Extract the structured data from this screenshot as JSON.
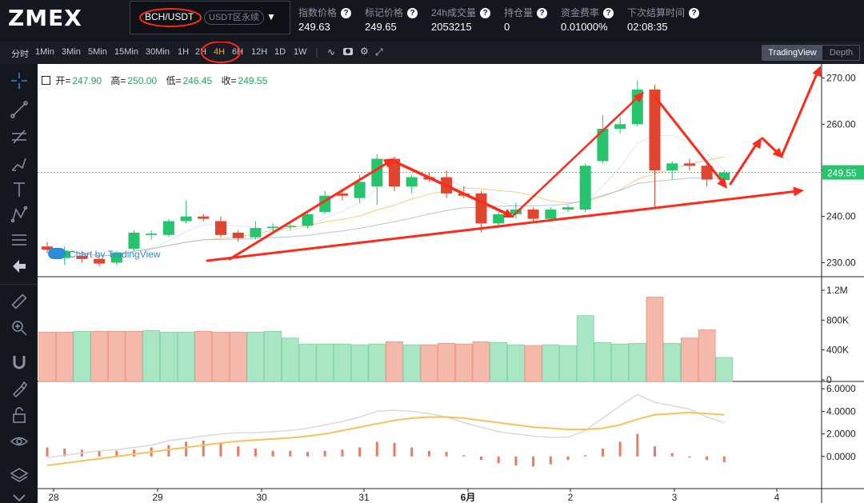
{
  "header": {
    "logo": "ZMEX",
    "symbol": "BCH/USDT",
    "symbol_type": "USDT区永续",
    "stats": [
      {
        "label": "指数价格",
        "value": "249.63"
      },
      {
        "label": "标记价格",
        "value": "249.65"
      },
      {
        "label": "24h成交量",
        "value": "2053215"
      },
      {
        "label": "持仓量",
        "value": "0"
      },
      {
        "label": "资金费率",
        "value": "0.01000%"
      },
      {
        "label": "下次结算时间",
        "value": "02:08:35"
      }
    ]
  },
  "toolbar": {
    "timeframes": [
      "分时",
      "1Min",
      "3Min",
      "5Min",
      "15Min",
      "30Min",
      "1H",
      "2H",
      "4H",
      "6H",
      "12H",
      "1D",
      "1W"
    ],
    "active_timeframe": "4H",
    "view_tradingview": "TradingView",
    "view_depth": "Depth"
  },
  "ohlc": {
    "open_label": "开=",
    "open": "247.90",
    "high_label": "高=",
    "high": "250.00",
    "low_label": "低=",
    "low": "246.45",
    "close_label": "收=",
    "close": "249.55"
  },
  "watermark": "Chart by TradingView",
  "colors": {
    "up": "#26c46c",
    "down": "#e0452f",
    "annotation": "#ff2a1a",
    "ma": "#f5c35a"
  },
  "chart_data": [
    {
      "type": "candlestick",
      "price_axis_ticks": [
        "270.00",
        "260.00",
        "250.00",
        "240.00",
        "230.00"
      ],
      "last_price_label": "249.55",
      "x_tick_labels": [
        "28",
        "29",
        "30",
        "31",
        "6月",
        "2",
        "3",
        "4"
      ],
      "ylim": [
        228,
        272
      ],
      "candles": [
        {
          "o": 233.5,
          "h": 234.5,
          "l": 232.0,
          "c": 232.8
        },
        {
          "o": 231.0,
          "h": 233.5,
          "l": 229.5,
          "c": 232.5
        },
        {
          "o": 231.5,
          "h": 232.5,
          "l": 230.0,
          "c": 230.8
        },
        {
          "o": 230.8,
          "h": 231.5,
          "l": 229.2,
          "c": 229.8
        },
        {
          "o": 230.0,
          "h": 232.5,
          "l": 229.5,
          "c": 232.2
        },
        {
          "o": 233.0,
          "h": 237.0,
          "l": 232.5,
          "c": 236.5
        },
        {
          "o": 236.0,
          "h": 237.0,
          "l": 235.0,
          "c": 236.3
        },
        {
          "o": 236.0,
          "h": 239.5,
          "l": 235.5,
          "c": 239.0
        },
        {
          "o": 239.0,
          "h": 243.5,
          "l": 238.5,
          "c": 240.0
        },
        {
          "o": 240.0,
          "h": 240.5,
          "l": 239.0,
          "c": 239.5
        },
        {
          "o": 239.0,
          "h": 240.0,
          "l": 235.5,
          "c": 236.0
        },
        {
          "o": 236.5,
          "h": 237.0,
          "l": 234.5,
          "c": 235.3
        },
        {
          "o": 235.5,
          "h": 239.0,
          "l": 235.0,
          "c": 237.5
        },
        {
          "o": 237.5,
          "h": 238.5,
          "l": 236.8,
          "c": 237.8
        },
        {
          "o": 237.8,
          "h": 239.0,
          "l": 237.0,
          "c": 238.0
        },
        {
          "o": 238.0,
          "h": 241.0,
          "l": 237.5,
          "c": 240.5
        },
        {
          "o": 241.0,
          "h": 245.5,
          "l": 240.5,
          "c": 244.5
        },
        {
          "o": 245.0,
          "h": 246.0,
          "l": 243.5,
          "c": 244.5
        },
        {
          "o": 244.0,
          "h": 249.0,
          "l": 243.0,
          "c": 247.5
        },
        {
          "o": 246.5,
          "h": 253.5,
          "l": 242.5,
          "c": 252.5
        },
        {
          "o": 252.5,
          "h": 253.0,
          "l": 245.5,
          "c": 246.5
        },
        {
          "o": 246.5,
          "h": 249.0,
          "l": 245.0,
          "c": 248.5
        },
        {
          "o": 248.5,
          "h": 249.5,
          "l": 247.5,
          "c": 248.0
        },
        {
          "o": 248.5,
          "h": 250.0,
          "l": 244.0,
          "c": 245.0
        },
        {
          "o": 245.0,
          "h": 246.5,
          "l": 244.0,
          "c": 244.5
        },
        {
          "o": 245.0,
          "h": 245.5,
          "l": 236.5,
          "c": 238.5
        },
        {
          "o": 238.5,
          "h": 241.0,
          "l": 237.5,
          "c": 240.5
        },
        {
          "o": 240.5,
          "h": 243.0,
          "l": 239.5,
          "c": 241.5
        },
        {
          "o": 241.5,
          "h": 242.0,
          "l": 239.0,
          "c": 239.5
        },
        {
          "o": 239.5,
          "h": 242.0,
          "l": 239.0,
          "c": 241.5
        },
        {
          "o": 241.5,
          "h": 242.5,
          "l": 241.0,
          "c": 242.0
        },
        {
          "o": 241.5,
          "h": 251.5,
          "l": 241.0,
          "c": 251.0
        },
        {
          "o": 252.0,
          "h": 262.0,
          "l": 251.5,
          "c": 259.0
        },
        {
          "o": 259.0,
          "h": 261.5,
          "l": 258.0,
          "c": 260.0
        },
        {
          "o": 260.0,
          "h": 269.5,
          "l": 259.5,
          "c": 267.5
        },
        {
          "o": 267.5,
          "h": 268.5,
          "l": 242.0,
          "c": 250.0
        },
        {
          "o": 250.0,
          "h": 252.0,
          "l": 248.0,
          "c": 251.5
        },
        {
          "o": 251.5,
          "h": 252.5,
          "l": 250.0,
          "c": 251.0
        },
        {
          "o": 251.0,
          "h": 251.5,
          "l": 246.5,
          "c": 248.0
        },
        {
          "o": 247.9,
          "h": 250.0,
          "l": 246.45,
          "c": 249.55
        }
      ]
    },
    {
      "type": "bar",
      "name": "volume",
      "axis_ticks": [
        "1.2M",
        "800K",
        "400K",
        "0"
      ],
      "ylim": [
        0,
        1200000
      ],
      "values": [
        640000,
        640000,
        650000,
        650000,
        650000,
        650000,
        660000,
        640000,
        640000,
        650000,
        640000,
        640000,
        640000,
        650000,
        560000,
        480000,
        480000,
        480000,
        470000,
        480000,
        510000,
        470000,
        470000,
        490000,
        480000,
        510000,
        500000,
        470000,
        460000,
        470000,
        460000,
        860000,
        500000,
        480000,
        490000,
        1110000,
        490000,
        560000,
        670000,
        300000
      ],
      "up": [
        false,
        false,
        true,
        false,
        false,
        false,
        true,
        true,
        true,
        false,
        false,
        false,
        true,
        true,
        true,
        true,
        true,
        true,
        true,
        true,
        false,
        true,
        false,
        false,
        false,
        false,
        true,
        true,
        false,
        true,
        true,
        true,
        true,
        true,
        true,
        false,
        true,
        false,
        false,
        true
      ]
    },
    {
      "type": "histogram",
      "name": "MACD",
      "axis_ticks": [
        "6.0000",
        "4.0000",
        "2.0000",
        "0.0000"
      ],
      "ylim": [
        -2.5,
        6.3
      ],
      "histogram": [
        0.8,
        0.7,
        0.6,
        0.5,
        0.5,
        0.6,
        0.8,
        1.0,
        1.3,
        1.4,
        1.2,
        0.9,
        0.7,
        0.5,
        0.5,
        0.4,
        0.5,
        0.6,
        0.8,
        1.3,
        1.2,
        0.8,
        0.5,
        0.4,
        0.1,
        -0.3,
        -0.6,
        -0.8,
        -0.9,
        -0.7,
        -0.3,
        0.1,
        0.7,
        1.3,
        2.0,
        0.9,
        0.3,
        -0.1,
        -0.3,
        -0.5
      ],
      "signal": [
        -0.8,
        -0.6,
        -0.4,
        -0.2,
        0.0,
        0.2,
        0.4,
        0.6,
        0.8,
        1.0,
        1.2,
        1.35,
        1.45,
        1.55,
        1.65,
        1.8,
        2.0,
        2.3,
        2.6,
        2.9,
        3.2,
        3.4,
        3.5,
        3.5,
        3.4,
        3.2,
        3.0,
        2.8,
        2.6,
        2.5,
        2.4,
        2.4,
        2.5,
        2.8,
        3.3,
        3.7,
        3.8,
        3.9,
        3.8,
        3.7
      ],
      "macd": [
        -0.1,
        0.1,
        0.3,
        0.5,
        0.6,
        0.8,
        1.0,
        1.4,
        1.6,
        1.8,
        2.0,
        2.1,
        2.1,
        2.2,
        2.3,
        2.5,
        2.8,
        3.1,
        3.5,
        4.0,
        4.1,
        4.0,
        3.8,
        3.5,
        3.0,
        2.6,
        2.2,
        2.0,
        1.8,
        1.7,
        1.7,
        2.3,
        3.4,
        4.5,
        5.5,
        4.8,
        4.5,
        4.2,
        3.5,
        3.0
      ]
    }
  ]
}
